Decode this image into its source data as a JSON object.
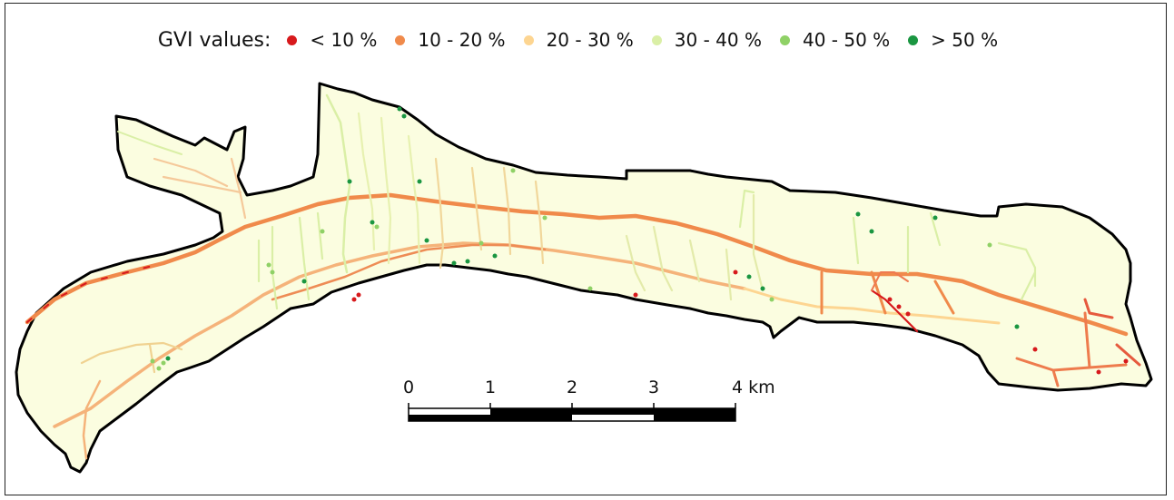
{
  "legend": {
    "title": "GVI values:",
    "items": [
      {
        "label": "< 10 %",
        "color": "#d7191c"
      },
      {
        "label": "10 - 20 %",
        "color": "#f08a4b"
      },
      {
        "label": "20 - 30 %",
        "color": "#fdd591"
      },
      {
        "label": "30 - 40 %",
        "color": "#daefa6"
      },
      {
        "label": "40 - 50 %",
        "color": "#8fd166"
      },
      {
        "label": "> 50 %",
        "color": "#1a9641"
      }
    ]
  },
  "map": {
    "land_color": "#fbfde0",
    "boundary_color": "#000000"
  },
  "scalebar": {
    "ticks": [
      "0",
      "1",
      "2",
      "3",
      "4 km"
    ]
  }
}
